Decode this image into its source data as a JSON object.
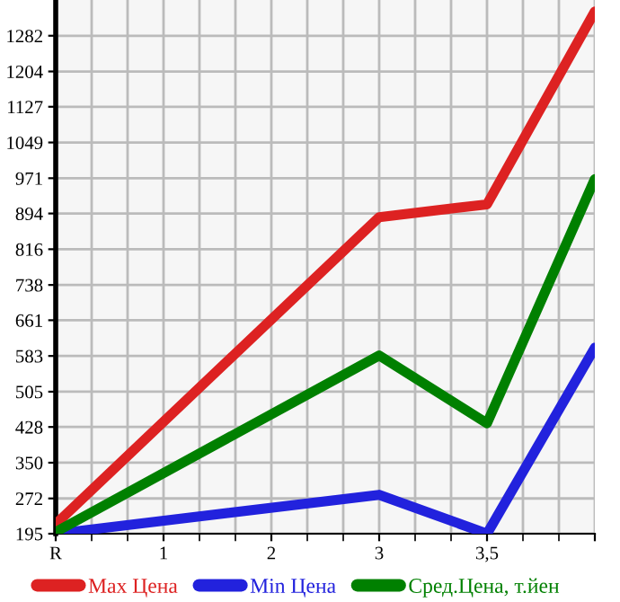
{
  "chart_data": {
    "type": "line",
    "categories": [
      "R",
      "1",
      "2",
      "3",
      "3,5",
      null
    ],
    "ylim": [
      195,
      1360
    ],
    "yticks": [
      195,
      272,
      350,
      428,
      505,
      583,
      661,
      738,
      816,
      894,
      971,
      1049,
      1127,
      1204,
      1282
    ],
    "grid": true,
    "legend": "bottom",
    "marker": "none",
    "line_style": "solid",
    "series": [
      {
        "name": "Max Цена",
        "color": "#dd2222",
        "values": [
          216,
          null,
          null,
          886,
          914,
          1335
        ]
      },
      {
        "name": "Min Цена",
        "color": "#2222dd",
        "values": [
          195,
          null,
          null,
          280,
          195,
          601
        ]
      },
      {
        "name": "Сред.Цена, т.йен",
        "color": "#008000",
        "values": [
          199,
          null,
          null,
          584,
          436,
          969
        ]
      }
    ]
  }
}
